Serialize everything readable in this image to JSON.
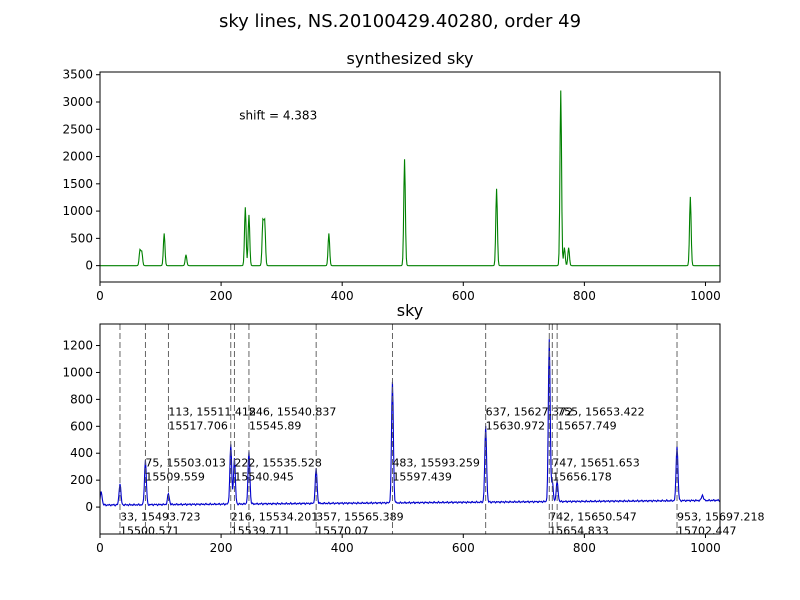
{
  "figure_title": "sky lines, NS.20100429.40280, order 49",
  "chart_data": [
    {
      "type": "line",
      "title": "synthesized sky",
      "color": "#008000",
      "xlim": [
        0,
        1024
      ],
      "ylim": [
        -300,
        3550
      ],
      "xticks": [
        0,
        200,
        400,
        600,
        800,
        1000
      ],
      "yticks": [
        0,
        500,
        1000,
        1500,
        2000,
        2500,
        3000,
        3500
      ],
      "annotation": {
        "text": "shift = 4.383",
        "x": 230,
        "y": 2680
      },
      "peaks": [
        {
          "x": 66,
          "height": 280
        },
        {
          "x": 69,
          "height": 250
        },
        {
          "x": 106,
          "height": 590
        },
        {
          "x": 142,
          "height": 200
        },
        {
          "x": 240,
          "height": 1070
        },
        {
          "x": 246,
          "height": 930
        },
        {
          "x": 269,
          "height": 800
        },
        {
          "x": 272,
          "height": 800
        },
        {
          "x": 378,
          "height": 590
        },
        {
          "x": 503,
          "height": 1950
        },
        {
          "x": 655,
          "height": 1410
        },
        {
          "x": 761,
          "height": 3210
        },
        {
          "x": 767,
          "height": 330
        },
        {
          "x": 774,
          "height": 330
        },
        {
          "x": 975,
          "height": 1260
        }
      ]
    },
    {
      "type": "line",
      "title": "sky",
      "color": "#0000cc",
      "xlim": [
        0,
        1024
      ],
      "ylim": [
        -200,
        1360
      ],
      "xticks": [
        0,
        200,
        400,
        600,
        800,
        1000
      ],
      "yticks": [
        0,
        200,
        400,
        600,
        800,
        1000,
        1200
      ],
      "peaks": [
        {
          "x": 2,
          "height": 100
        },
        {
          "x": 33,
          "height": 160
        },
        {
          "x": 75,
          "height": 330
        },
        {
          "x": 113,
          "height": 80
        },
        {
          "x": 216,
          "height": 440
        },
        {
          "x": 222,
          "height": 340
        },
        {
          "x": 246,
          "height": 390
        },
        {
          "x": 357,
          "height": 260
        },
        {
          "x": 483,
          "height": 900
        },
        {
          "x": 637,
          "height": 560
        },
        {
          "x": 742,
          "height": 1210
        },
        {
          "x": 747,
          "height": 150
        },
        {
          "x": 755,
          "height": 150
        },
        {
          "x": 953,
          "height": 410
        },
        {
          "x": 995,
          "height": 40
        }
      ],
      "lines": [
        {
          "x": 33,
          "label_line1": "33, 15493.723",
          "label_line2": "15500.571",
          "pos": "low"
        },
        {
          "x": 75,
          "label_line1": "75, 15503.013",
          "label_line2": "15509.559",
          "pos": "mid"
        },
        {
          "x": 113,
          "label_line1": "113, 15511.418",
          "label_line2": "15517.706",
          "pos": "high"
        },
        {
          "x": 216,
          "label_line1": "216, 15534.201",
          "label_line2": "15539.711",
          "pos": "low"
        },
        {
          "x": 222,
          "label_line1": "222, 15535.528",
          "label_line2": "15540.945",
          "pos": "mid"
        },
        {
          "x": 246,
          "label_line1": "246, 15540.837",
          "label_line2": "15545.89",
          "pos": "high"
        },
        {
          "x": 357,
          "label_line1": "357, 15565.389",
          "label_line2": "15570.07",
          "pos": "low"
        },
        {
          "x": 483,
          "label_line1": "483, 15593.259",
          "label_line2": "15597.439",
          "pos": "mid"
        },
        {
          "x": 637,
          "label_line1": "637, 15627.372",
          "label_line2": "15630.972",
          "pos": "high"
        },
        {
          "x": 742,
          "label_line1": "742, 15650.547",
          "label_line2": "15654.833",
          "pos": "low"
        },
        {
          "x": 747,
          "label_line1": "747, 15651.653",
          "label_line2": "15656.178",
          "pos": "mid"
        },
        {
          "x": 755,
          "label_line1": "755, 15653.422",
          "label_line2": "15657.749",
          "pos": "high"
        },
        {
          "x": 953,
          "label_line1": "953, 15697.218",
          "label_line2": "15702.447",
          "pos": "low"
        }
      ]
    }
  ]
}
